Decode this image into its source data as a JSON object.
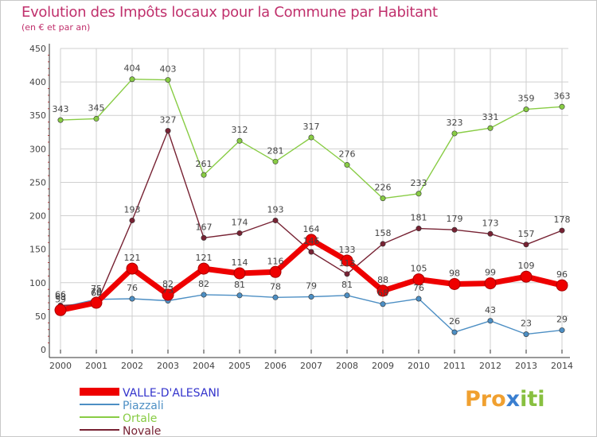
{
  "header": {
    "title": "Evolution des Impôts locaux pour la Commune par Habitant",
    "subtitle": "(en € et par an)"
  },
  "logo": {
    "text_a": "Pro",
    "text_b": "x",
    "text_c": "iti"
  },
  "colors": {
    "title": "#c0306c",
    "grid": "#cfcfcf",
    "axis": "#333333",
    "tick_minor": "#d04040"
  },
  "chart_data": {
    "type": "line",
    "title": "Evolution des Impôts locaux pour la Commune par Habitant",
    "subtitle": "(en € et par an)",
    "xlabel": "",
    "ylabel": "",
    "categories": [
      "2000",
      "2001",
      "2002",
      "2003",
      "2004",
      "2005",
      "2006",
      "2007",
      "2008",
      "2009",
      "2010",
      "2011",
      "2012",
      "2013",
      "2014"
    ],
    "ylim": [
      0,
      450
    ],
    "yticks": [
      0,
      50,
      100,
      150,
      200,
      250,
      300,
      350,
      400,
      450
    ],
    "grid": true,
    "legend_position": "bottom-left",
    "series": [
      {
        "name": "VALLE-D'ALESANI",
        "color": "#ee0000",
        "legend_color": "#3333cc",
        "style": "thick",
        "values": [
          59,
          70,
          121,
          82,
          121,
          114,
          116,
          164,
          133,
          88,
          105,
          98,
          99,
          109,
          96
        ],
        "labels": [
          "59",
          "70",
          "121",
          "82",
          "121",
          "114",
          "116",
          "164",
          "133",
          "88",
          "105",
          "98",
          "99",
          "109",
          "96"
        ]
      },
      {
        "name": "Piazzali",
        "color": "#4d8fc4",
        "legend_color": "#4d8fc4",
        "style": "thin",
        "values": [
          63,
          75,
          76,
          73,
          82,
          81,
          78,
          79,
          81,
          68,
          76,
          26,
          43,
          23,
          29
        ],
        "labels": [
          "63",
          "75",
          "76",
          "73",
          "82",
          "81",
          "78",
          "79",
          "81",
          "68",
          "76",
          "26",
          "43",
          "23",
          "29"
        ]
      },
      {
        "name": "Ortale",
        "color": "#88cc44",
        "legend_color": "#88cc44",
        "style": "thin",
        "values": [
          343,
          345,
          404,
          403,
          261,
          312,
          281,
          317,
          276,
          226,
          233,
          323,
          331,
          359,
          363
        ],
        "labels": [
          "343",
          "345",
          "404",
          "403",
          "261",
          "312",
          "281",
          "317",
          "276",
          "226",
          "233",
          "323",
          "331",
          "359",
          "363"
        ]
      },
      {
        "name": "Novale",
        "color": "#772233",
        "legend_color": "#772233",
        "style": "thin",
        "values": [
          66,
          68,
          193,
          327,
          167,
          174,
          193,
          146,
          113,
          158,
          181,
          179,
          173,
          157,
          178
        ],
        "labels": [
          "66",
          "68",
          "193",
          "327",
          "167",
          "174",
          "193",
          "146",
          "113",
          "158",
          "181",
          "179",
          "173",
          "157",
          "178"
        ]
      }
    ]
  }
}
